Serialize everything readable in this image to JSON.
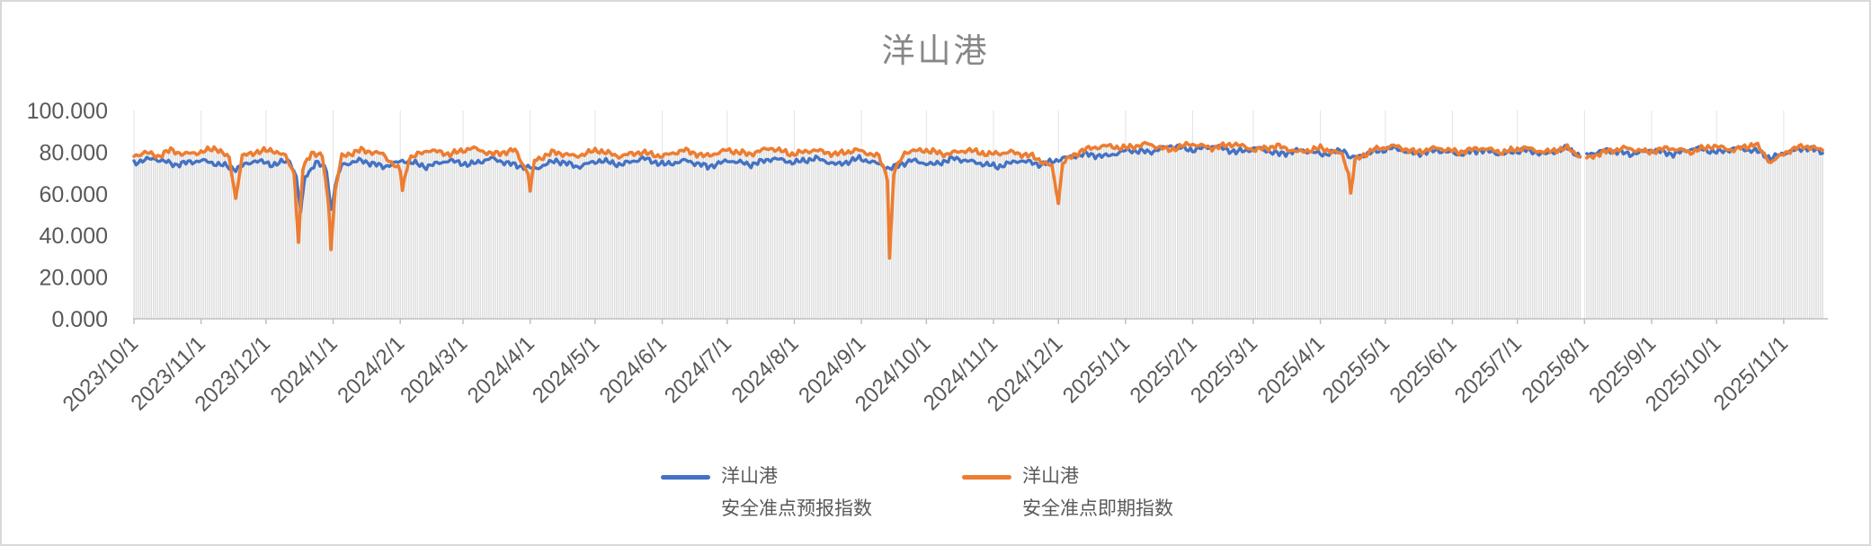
{
  "chart_data": {
    "type": "line",
    "title": "洋山港",
    "legend_position": "bottom",
    "grid": {
      "vertical_major": true,
      "horizontal": false
    },
    "colors": {
      "title_text": "#878787",
      "axis_text": "#595959",
      "axis_line": "#c0c0c0",
      "month_gridline": "#e3e3e3",
      "drop_line": "#dcdcdc",
      "series_forecast": "#4472C4",
      "series_spot": "#ED7D31",
      "plot_background": "#ffffff"
    },
    "y_axis": {
      "min": 0,
      "max": 100,
      "ticks": [
        {
          "label": "100.000",
          "value": 100
        },
        {
          "label": "80.000",
          "value": 80
        },
        {
          "label": "60.000",
          "value": 60
        },
        {
          "label": "40.000",
          "value": 40
        },
        {
          "label": "20.000",
          "value": 20
        },
        {
          "label": "0.000",
          "value": 0
        }
      ]
    },
    "x_axis": {
      "start_date": "2023-10-01",
      "end_date": "2025-11-19",
      "data_gap_dates": [
        "2025-07-31",
        "2025-08-01"
      ],
      "tick_labels": [
        "2023/10/1",
        "2023/11/1",
        "2023/12/1",
        "2024/1/1",
        "2024/2/1",
        "2024/3/1",
        "2024/4/1",
        "2024/5/1",
        "2024/6/1",
        "2024/7/1",
        "2024/8/1",
        "2024/9/1",
        "2024/10/1",
        "2024/11/1",
        "2024/12/1",
        "2025/1/1",
        "2025/2/1",
        "2025/3/1",
        "2025/4/1",
        "2025/5/1",
        "2025/6/1",
        "2025/7/1",
        "2025/8/1",
        "2025/9/1",
        "2025/10/1",
        "2025/11/1"
      ]
    },
    "drop_lines": {
      "enabled": true,
      "color": "#dcdcdc"
    },
    "series": [
      {
        "name": "洋山港安全准点预报指数",
        "legend_label_line1": "洋山港",
        "legend_label_line2": "安全准点预报指数",
        "color": "#4472C4",
        "noise_amplitude": 1.7,
        "noise_seed": 2.0,
        "anchors": [
          [
            "2023-10-01",
            75
          ],
          [
            "2023-10-10",
            77
          ],
          [
            "2023-10-20",
            74
          ],
          [
            "2023-11-01",
            76
          ],
          [
            "2023-11-10",
            74
          ],
          [
            "2023-11-17",
            72
          ],
          [
            "2023-11-26",
            76
          ],
          [
            "2023-12-04",
            74
          ],
          [
            "2023-12-12",
            76
          ],
          [
            "2023-12-15",
            68
          ],
          [
            "2023-12-17",
            51
          ],
          [
            "2023-12-19",
            68
          ],
          [
            "2023-12-24",
            75
          ],
          [
            "2023-12-29",
            72
          ],
          [
            "2023-12-31",
            52
          ],
          [
            "2024-01-02",
            64
          ],
          [
            "2024-01-05",
            74
          ],
          [
            "2024-01-14",
            76
          ],
          [
            "2024-01-24",
            73
          ],
          [
            "2024-02-03",
            76
          ],
          [
            "2024-02-13",
            73
          ],
          [
            "2024-02-23",
            76
          ],
          [
            "2024-03-04",
            74
          ],
          [
            "2024-03-14",
            77
          ],
          [
            "2024-03-24",
            74
          ],
          [
            "2024-04-03",
            72
          ],
          [
            "2024-04-13",
            76
          ],
          [
            "2024-04-23",
            73
          ],
          [
            "2024-05-03",
            76
          ],
          [
            "2024-05-13",
            74
          ],
          [
            "2024-05-23",
            77
          ],
          [
            "2024-06-02",
            74
          ],
          [
            "2024-06-12",
            76
          ],
          [
            "2024-06-22",
            73
          ],
          [
            "2024-07-02",
            76
          ],
          [
            "2024-07-12",
            74
          ],
          [
            "2024-07-22",
            77
          ],
          [
            "2024-08-01",
            75
          ],
          [
            "2024-08-11",
            77
          ],
          [
            "2024-08-21",
            74
          ],
          [
            "2024-08-31",
            77
          ],
          [
            "2024-09-10",
            74
          ],
          [
            "2024-09-14",
            72
          ],
          [
            "2024-09-24",
            76
          ],
          [
            "2024-10-04",
            74
          ],
          [
            "2024-10-14",
            77
          ],
          [
            "2024-10-24",
            75
          ],
          [
            "2024-11-03",
            73
          ],
          [
            "2024-11-13",
            76
          ],
          [
            "2024-11-23",
            74
          ],
          [
            "2024-12-03",
            77
          ],
          [
            "2024-12-13",
            79
          ],
          [
            "2024-12-23",
            78
          ],
          [
            "2025-01-02",
            81
          ],
          [
            "2025-01-12",
            80
          ],
          [
            "2025-01-22",
            83
          ],
          [
            "2025-02-01",
            81
          ],
          [
            "2025-02-11",
            83
          ],
          [
            "2025-02-21",
            80
          ],
          [
            "2025-03-03",
            82
          ],
          [
            "2025-03-13",
            79
          ],
          [
            "2025-03-23",
            81
          ],
          [
            "2025-04-02",
            79
          ],
          [
            "2025-04-12",
            81
          ],
          [
            "2025-04-15",
            77
          ],
          [
            "2025-04-25",
            80
          ],
          [
            "2025-05-05",
            82
          ],
          [
            "2025-05-15",
            79
          ],
          [
            "2025-05-25",
            81
          ],
          [
            "2025-06-04",
            79
          ],
          [
            "2025-06-14",
            81
          ],
          [
            "2025-06-24",
            79
          ],
          [
            "2025-07-04",
            81
          ],
          [
            "2025-07-14",
            79
          ],
          [
            "2025-07-24",
            82
          ],
          [
            "2025-07-30",
            78
          ],
          [
            "2025-08-02",
            79
          ],
          [
            "2025-08-12",
            81
          ],
          [
            "2025-08-22",
            79
          ],
          [
            "2025-09-01",
            81
          ],
          [
            "2025-09-11",
            79
          ],
          [
            "2025-09-21",
            82
          ],
          [
            "2025-10-01",
            80
          ],
          [
            "2025-10-11",
            82
          ],
          [
            "2025-10-21",
            80
          ],
          [
            "2025-10-26",
            77
          ],
          [
            "2025-11-02",
            80
          ],
          [
            "2025-11-12",
            82
          ],
          [
            "2025-11-19",
            80
          ]
        ]
      },
      {
        "name": "洋山港安全准点即期指数",
        "legend_label_line1": "洋山港",
        "legend_label_line2": "安全准点即期指数",
        "color": "#ED7D31",
        "noise_amplitude": 1.7,
        "noise_seed": 5.3,
        "anchors": [
          [
            "2023-10-01",
            78
          ],
          [
            "2023-10-06",
            80
          ],
          [
            "2023-10-12",
            78
          ],
          [
            "2023-10-18",
            81
          ],
          [
            "2023-10-24",
            79
          ],
          [
            "2023-11-01",
            80
          ],
          [
            "2023-11-08",
            82
          ],
          [
            "2023-11-14",
            77
          ],
          [
            "2023-11-17",
            58
          ],
          [
            "2023-11-20",
            78
          ],
          [
            "2023-11-26",
            80
          ],
          [
            "2023-12-04",
            81
          ],
          [
            "2023-12-10",
            78
          ],
          [
            "2023-12-14",
            70
          ],
          [
            "2023-12-16",
            36
          ],
          [
            "2023-12-18",
            72
          ],
          [
            "2023-12-22",
            80
          ],
          [
            "2023-12-27",
            78
          ],
          [
            "2023-12-30",
            54
          ],
          [
            "2023-12-31",
            34
          ],
          [
            "2024-01-02",
            62
          ],
          [
            "2024-01-05",
            78
          ],
          [
            "2024-01-14",
            81
          ],
          [
            "2024-01-24",
            79
          ],
          [
            "2024-02-01",
            71
          ],
          [
            "2024-02-02",
            62
          ],
          [
            "2024-02-05",
            77
          ],
          [
            "2024-02-14",
            81
          ],
          [
            "2024-02-24",
            79
          ],
          [
            "2024-03-05",
            82
          ],
          [
            "2024-03-15",
            79
          ],
          [
            "2024-03-25",
            81
          ],
          [
            "2024-03-31",
            70
          ],
          [
            "2024-04-01",
            61
          ],
          [
            "2024-04-03",
            76
          ],
          [
            "2024-04-12",
            80
          ],
          [
            "2024-04-22",
            78
          ],
          [
            "2024-05-02",
            81
          ],
          [
            "2024-05-12",
            78
          ],
          [
            "2024-05-22",
            80
          ],
          [
            "2024-06-01",
            78
          ],
          [
            "2024-06-11",
            81
          ],
          [
            "2024-06-21",
            78
          ],
          [
            "2024-07-01",
            81
          ],
          [
            "2024-07-11",
            79
          ],
          [
            "2024-07-21",
            82
          ],
          [
            "2024-07-31",
            79
          ],
          [
            "2024-08-10",
            81
          ],
          [
            "2024-08-20",
            79
          ],
          [
            "2024-08-30",
            81
          ],
          [
            "2024-09-09",
            78
          ],
          [
            "2024-09-13",
            68
          ],
          [
            "2024-09-14",
            29
          ],
          [
            "2024-09-16",
            70
          ],
          [
            "2024-09-21",
            80
          ],
          [
            "2024-09-30",
            81
          ],
          [
            "2024-10-10",
            79
          ],
          [
            "2024-10-20",
            81
          ],
          [
            "2024-10-30",
            79
          ],
          [
            "2024-11-09",
            80
          ],
          [
            "2024-11-19",
            78
          ],
          [
            "2024-11-28",
            73
          ],
          [
            "2024-12-01",
            56
          ],
          [
            "2024-12-03",
            75
          ],
          [
            "2024-12-12",
            81
          ],
          [
            "2024-12-22",
            83
          ],
          [
            "2025-01-01",
            82
          ],
          [
            "2025-01-11",
            84
          ],
          [
            "2025-01-21",
            81
          ],
          [
            "2025-01-31",
            84
          ],
          [
            "2025-02-10",
            82
          ],
          [
            "2025-02-20",
            84
          ],
          [
            "2025-03-02",
            81
          ],
          [
            "2025-03-12",
            83
          ],
          [
            "2025-03-22",
            80
          ],
          [
            "2025-04-01",
            82
          ],
          [
            "2025-04-11",
            79
          ],
          [
            "2025-04-14",
            70
          ],
          [
            "2025-04-15",
            60
          ],
          [
            "2025-04-17",
            76
          ],
          [
            "2025-04-25",
            81
          ],
          [
            "2025-05-05",
            83
          ],
          [
            "2025-05-15",
            80
          ],
          [
            "2025-05-25",
            82
          ],
          [
            "2025-06-04",
            80
          ],
          [
            "2025-06-14",
            82
          ],
          [
            "2025-06-24",
            80
          ],
          [
            "2025-07-04",
            82
          ],
          [
            "2025-07-14",
            80
          ],
          [
            "2025-07-24",
            82
          ],
          [
            "2025-07-30",
            78
          ],
          [
            "2025-08-02",
            77
          ],
          [
            "2025-08-10",
            80
          ],
          [
            "2025-08-20",
            82
          ],
          [
            "2025-08-30",
            80
          ],
          [
            "2025-09-09",
            82
          ],
          [
            "2025-09-19",
            80
          ],
          [
            "2025-09-29",
            83
          ],
          [
            "2025-10-09",
            81
          ],
          [
            "2025-10-19",
            84
          ],
          [
            "2025-10-26",
            75
          ],
          [
            "2025-11-02",
            80
          ],
          [
            "2025-11-10",
            83
          ],
          [
            "2025-11-19",
            81
          ]
        ]
      }
    ]
  }
}
